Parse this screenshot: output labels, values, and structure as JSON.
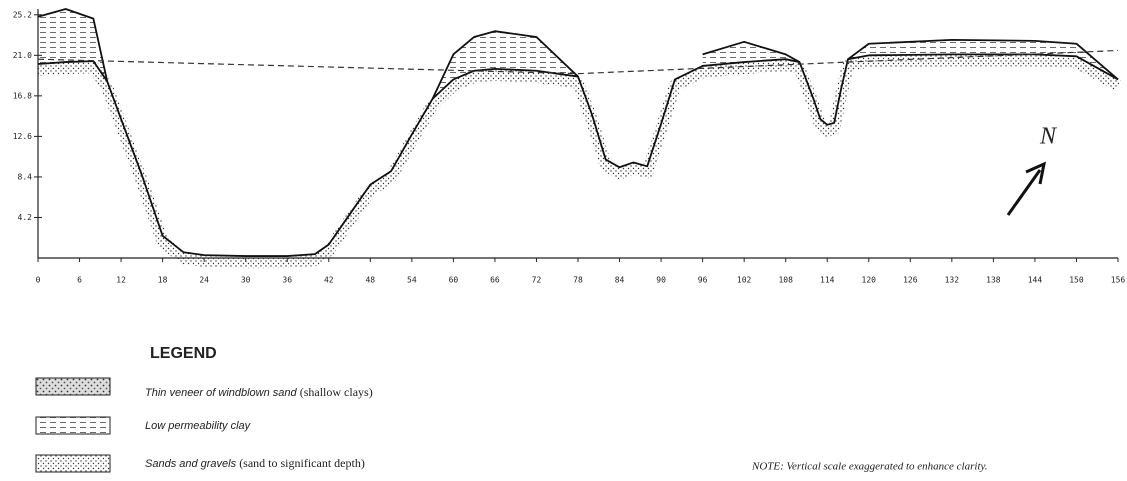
{
  "chart_data": {
    "type": "line",
    "x": [
      0,
      4,
      8,
      10,
      12,
      15,
      18,
      21,
      24,
      30,
      36,
      40,
      42,
      45,
      48,
      51,
      54,
      57,
      60,
      63,
      66,
      72,
      78,
      80,
      82,
      84,
      86,
      88,
      90,
      92,
      96,
      102,
      108,
      110,
      112,
      113,
      114,
      115,
      116,
      117,
      120,
      132,
      144,
      150,
      156
    ],
    "series": [
      {
        "color": "#111111",
        "values": [
          20.1,
          20.3,
          20.4,
          18.3,
          14.4,
          8.6,
          2.3,
          0.6,
          0.3,
          0.2,
          0.2,
          0.4,
          1.4,
          4.5,
          7.6,
          9.0,
          12.8,
          16.5,
          18.5,
          19.4,
          19.6,
          19.4,
          18.8,
          14.9,
          10.2,
          9.4,
          9.9,
          9.5,
          13.9,
          18.5,
          19.9,
          20.3,
          20.6,
          20.3,
          16.5,
          14.4,
          13.8,
          14.0,
          17.5,
          20.6,
          21.0,
          21.1,
          21.1,
          20.9,
          18.5
        ]
      },
      {
        "color": "#111111",
        "values": [
          25.0,
          25.8,
          24.8,
          18.3,
          null,
          null,
          null,
          null,
          null,
          null,
          null,
          null,
          null,
          null,
          null,
          null,
          null,
          16.5,
          21.1,
          22.9,
          23.5,
          22.9,
          18.8,
          null,
          null,
          null,
          null,
          null,
          null,
          null,
          21.1,
          22.4,
          21.1,
          20.3,
          null,
          null,
          null,
          null,
          null,
          20.6,
          22.2,
          22.6,
          22.5,
          22.2,
          18.5
        ]
      },
      {
        "color": "#333333",
        "dashed": true,
        "x": [
          0,
          78,
          156
        ],
        "values": [
          20.6,
          19.1,
          21.5
        ]
      }
    ],
    "xlim": [
      0,
      156
    ],
    "ylim": [
      0,
      25.8
    ],
    "xticks": [
      0,
      6,
      12,
      18,
      24,
      30,
      36,
      42,
      48,
      54,
      60,
      66,
      72,
      78,
      84,
      90,
      96,
      102,
      108,
      114,
      120,
      126,
      132,
      138,
      144,
      150,
      156
    ],
    "yticks": [
      4.2,
      8.4,
      12.6,
      16.8,
      {
        "value": 21,
        "label": "21.0"
      },
      25.2
    ],
    "annotations": [
      "N"
    ]
  },
  "legend": {
    "title": "LEGEND",
    "items": [
      {
        "label": "Thin veneer of windblown sand",
        "detail": "(shallow clays)"
      },
      {
        "label": "Low permeability clay"
      },
      {
        "label": "Sands and gravels",
        "detail": "(sand to significant depth)"
      }
    ]
  },
  "note": "NOTE: Vertical scale exaggerated to enhance clarity."
}
